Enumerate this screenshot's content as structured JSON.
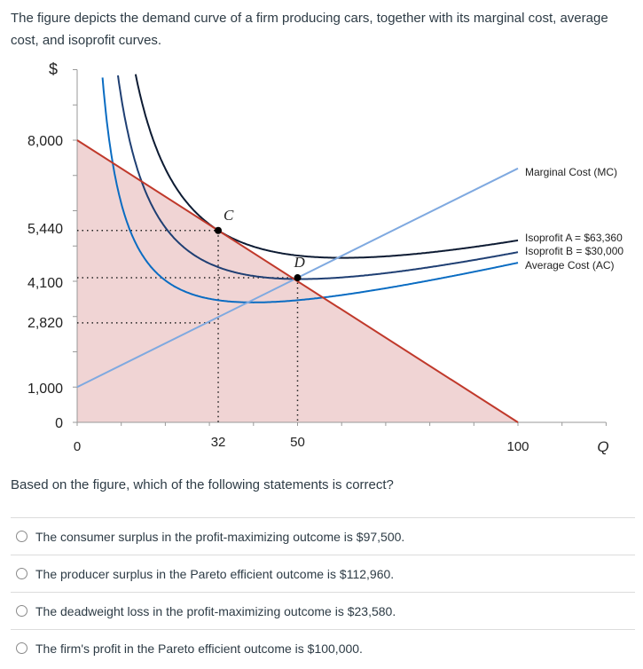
{
  "intro": "The figure depicts the demand curve of a firm producing cars, together with its marginal cost, average cost, and isoprofit curves.",
  "chart_data": {
    "type": "line",
    "ylabel": "$",
    "xlabel": "Q",
    "xlim": [
      0,
      120
    ],
    "ylim": [
      0,
      10000
    ],
    "y_tick_labels": [
      "8,000",
      "5,440",
      "4,100",
      "2,820",
      "1,000",
      "0"
    ],
    "y_tick_values": [
      8000,
      5440,
      4100,
      2820,
      1000,
      0
    ],
    "x_tick_labels": [
      "0",
      "32",
      "50",
      "100"
    ],
    "x_tick_values": [
      0,
      32,
      50,
      100
    ],
    "series": [
      {
        "name": "Demand",
        "label": "",
        "color": "#c0392b",
        "from": [
          0,
          8000
        ],
        "to": [
          100,
          0
        ],
        "shaded": true,
        "fill": "#f0d4d4"
      },
      {
        "name": "Marginal Cost (MC)",
        "color": "#7fa9e0",
        "from": [
          0,
          1000
        ],
        "to": [
          100,
          7200
        ]
      },
      {
        "name": "Isoprofit A = $63,360",
        "color": "#0d1b33",
        "profit": 63360
      },
      {
        "name": "Isoprofit B = $30,000",
        "color": "#1f3f73",
        "profit": 30000
      },
      {
        "name": "Average Cost (AC)",
        "color": "#0a6cc2",
        "profit": 0
      }
    ],
    "points": [
      {
        "label": "C",
        "q": 32,
        "p": 5440
      },
      {
        "label": "D",
        "q": 50,
        "p": 4100
      }
    ],
    "dotted_guides": [
      {
        "q": 32,
        "p": 5440
      },
      {
        "q": 50,
        "p": 4100
      },
      {
        "q": 32,
        "p": 2820
      }
    ]
  },
  "question": "Based on the figure, which of the following statements is correct?",
  "answers": [
    "The consumer surplus in the profit-maximizing outcome is $97,500.",
    "The producer surplus in the Pareto efficient outcome is $112,960.",
    "The deadweight loss in the profit-maximizing outcome is $23,580.",
    "The firm's profit in the Pareto efficient outcome is $100,000."
  ]
}
